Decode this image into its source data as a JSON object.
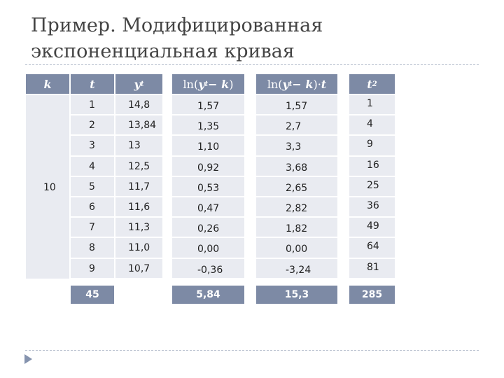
{
  "slide": {
    "title_line1": "Пример. Модифицированная",
    "title_line2": "экспоненциальная кривая"
  },
  "headers": {
    "k": "k",
    "t": "t",
    "yt": "y",
    "yt_sub": "t",
    "ln_open": "ln(",
    "ln_y": "y",
    "ln_y_sub": "t",
    "ln_minus_k": " − k",
    "ln_close": ")",
    "ln_close_t": ")·",
    "ln_t": " t",
    "t2": "t",
    "t2_sup": "2"
  },
  "k_value": "10",
  "rows": [
    {
      "t": "1",
      "yt": "14,8",
      "ln": "1,57",
      "lnt": "1,57",
      "t2": "1"
    },
    {
      "t": "2",
      "yt": "13,84",
      "ln": "1,35",
      "lnt": "2,7",
      "t2": "4"
    },
    {
      "t": "3",
      "yt": "13",
      "ln": "1,10",
      "lnt": "3,3",
      "t2": "9"
    },
    {
      "t": "4",
      "yt": "12,5",
      "ln": "0,92",
      "lnt": "3,68",
      "t2": "16"
    },
    {
      "t": "5",
      "yt": "11,7",
      "ln": "0,53",
      "lnt": "2,65",
      "t2": "25"
    },
    {
      "t": "6",
      "yt": "11,6",
      "ln": "0,47",
      "lnt": "2,82",
      "t2": "36"
    },
    {
      "t": "7",
      "yt": "11,3",
      "ln": "0,26",
      "lnt": "1,82",
      "t2": "49"
    },
    {
      "t": "8",
      "yt": "11,0",
      "ln": "0,00",
      "lnt": "0,00",
      "t2": "64"
    },
    {
      "t": "9",
      "yt": "10,7",
      "ln": "-0,36",
      "lnt": "-3,24",
      "t2": "81"
    }
  ],
  "totals": {
    "t": "45",
    "ln": "5,84",
    "lnt": "15,3",
    "t2": "285"
  },
  "colors": {
    "header": "#7d8aa5",
    "cell": "#e9ebf1",
    "rule": "#b9c1cf"
  }
}
